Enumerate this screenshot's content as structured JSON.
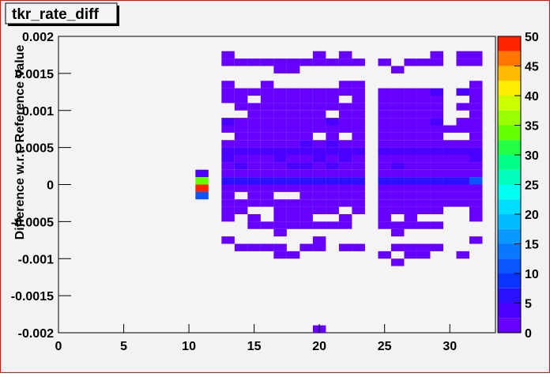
{
  "chart_data": {
    "type": "heatmap",
    "title": "tkr_rate_diff",
    "y_label": "Difference w.r.t. Reference Value",
    "xlim": [
      0,
      33.5
    ],
    "xticks": [
      0,
      5,
      10,
      15,
      20,
      25,
      30
    ],
    "ylim": [
      -0.002,
      0.002
    ],
    "yticks": [
      -0.002,
      -0.0015,
      -0.001,
      -0.0005,
      0,
      0.0005,
      0.001,
      0.0015,
      0.002
    ],
    "zlim": [
      0,
      50
    ],
    "zticks": [
      0,
      5,
      10,
      15,
      20,
      25,
      30,
      35,
      40,
      45,
      50
    ],
    "palette": [
      "#6600ff",
      "#4a00ff",
      "#2a10ff",
      "#0a33ff",
      "#0a55ff",
      "#0a77ff",
      "#0a99ff",
      "#00bbff",
      "#00ddff",
      "#00ffee",
      "#00ffbb",
      "#00ff88",
      "#22ff44",
      "#66ff00",
      "#99ff00",
      "#ccff00",
      "#ffee00",
      "#ffbb00",
      "#ff7700",
      "#ff2200"
    ],
    "xbins": [
      -0.5,
      0.5,
      1.5,
      2.5,
      3.5,
      4.5,
      5.5,
      6.5,
      7.5,
      8.5,
      9.5,
      10.5,
      11.5,
      12.5,
      13.5,
      14.5,
      15.5,
      16.5,
      17.5,
      18.5,
      19.5,
      20.5,
      21.5,
      22.5,
      23.5,
      24.5,
      25.5,
      26.5,
      27.5,
      28.5,
      29.5,
      30.5,
      31.5,
      32.5,
      33.5
    ],
    "ybins": [
      -0.002,
      -0.0019,
      -0.0018,
      -0.0017,
      -0.0016,
      -0.0015,
      -0.0014,
      -0.0013,
      -0.0012,
      -0.0011,
      -0.001,
      -0.0009,
      -0.0008,
      -0.0007,
      -0.0006,
      -0.0005,
      -0.0004,
      -0.0003,
      -0.0002,
      -0.0001,
      0,
      0.0001,
      0.0002,
      0.0003,
      0.0004,
      0.0005,
      0.0006,
      0.0007,
      0.0008,
      0.0009,
      0.001,
      0.0011,
      0.0012,
      0.0013,
      0.0014,
      0.0015,
      0.0016,
      0.0017,
      0.0018,
      0.0019,
      0.002
    ],
    "rows": [
      {
        "y": 0.00175,
        "x": [
          13,
          20,
          22,
          29,
          31,
          32
        ],
        "z": [
          1,
          1,
          1,
          1,
          1,
          1
        ]
      },
      {
        "y": 0.00165,
        "x": [
          13,
          14,
          15,
          16,
          17,
          18,
          19,
          20,
          21,
          22,
          23,
          25,
          27,
          28,
          29,
          31,
          32
        ],
        "z": [
          1,
          1,
          1,
          1,
          1,
          1,
          1,
          1,
          1,
          1,
          1,
          1,
          1,
          1,
          1,
          1,
          1
        ]
      },
      {
        "y": 0.00155,
        "x": [
          17,
          18,
          26
        ],
        "z": [
          1,
          1,
          1
        ]
      },
      {
        "y": 0.00135,
        "x": [
          13,
          16,
          22,
          23,
          32
        ],
        "z": [
          1,
          1,
          1,
          1,
          1
        ]
      },
      {
        "y": 0.00125,
        "x": [
          13,
          14,
          15,
          16,
          17,
          18,
          19,
          20,
          21,
          22,
          23,
          25,
          26,
          27,
          28,
          29,
          31,
          32
        ],
        "z": [
          1,
          1,
          1,
          1,
          1,
          1,
          1,
          1,
          1,
          1,
          1,
          1,
          1,
          1,
          1,
          3,
          3,
          1
        ]
      },
      {
        "y": 0.00115,
        "x": [
          13,
          14,
          16,
          17,
          18,
          19,
          20,
          21,
          23,
          25,
          26,
          27,
          28,
          29,
          32
        ],
        "z": [
          1,
          1,
          1,
          1,
          1,
          1,
          1,
          1,
          1,
          1,
          1,
          1,
          1,
          1,
          1
        ]
      },
      {
        "y": 0.00105,
        "x": [
          14,
          15,
          16,
          17,
          18,
          19,
          20,
          21,
          22,
          23,
          25,
          26,
          27,
          28,
          29,
          31,
          32
        ],
        "z": [
          1,
          1,
          1,
          1,
          1,
          1,
          1,
          1,
          1,
          1,
          1,
          1,
          1,
          1,
          1,
          1,
          1
        ]
      },
      {
        "y": 0.00095,
        "x": [
          15,
          16,
          17,
          18,
          19,
          20,
          22,
          23,
          25,
          26,
          27,
          28,
          29,
          32
        ],
        "z": [
          1,
          1,
          1,
          1,
          1,
          1,
          1,
          1,
          1,
          1,
          1,
          1,
          1,
          1
        ]
      },
      {
        "y": 0.00085,
        "x": [
          13,
          14,
          15,
          16,
          17,
          18,
          19,
          20,
          21,
          22,
          23,
          25,
          26,
          27,
          28,
          29,
          31,
          32
        ],
        "z": [
          4,
          1,
          1,
          1,
          1,
          1,
          1,
          1,
          3,
          1,
          1,
          1,
          1,
          1,
          1,
          3,
          1,
          1
        ]
      },
      {
        "y": 0.00075,
        "x": [
          13,
          14,
          15,
          16,
          17,
          18,
          19,
          20,
          21,
          22,
          23,
          25,
          26,
          27,
          28,
          29,
          30,
          31,
          32
        ],
        "z": [
          1,
          1,
          1,
          1,
          1,
          1,
          1,
          1,
          1,
          1,
          1,
          1,
          1,
          1,
          1,
          1,
          1,
          1,
          1
        ]
      },
      {
        "y": 0.00065,
        "x": [
          14,
          15,
          16,
          17,
          18,
          19,
          21,
          23,
          25,
          26,
          27,
          28,
          29,
          32
        ],
        "z": [
          1,
          1,
          1,
          1,
          1,
          1,
          1,
          1,
          1,
          1,
          1,
          1,
          1,
          1
        ]
      },
      {
        "y": 0.00055,
        "x": [
          13,
          14,
          15,
          16,
          17,
          18,
          19,
          20,
          21,
          22,
          23,
          25,
          26,
          27,
          28,
          29,
          30,
          31,
          32
        ],
        "z": [
          1,
          1,
          1,
          1,
          1,
          1,
          3,
          1,
          3,
          1,
          1,
          1,
          1,
          1,
          1,
          1,
          1,
          1,
          1
        ]
      },
      {
        "y": 0.00045,
        "x": [
          13,
          14,
          15,
          16,
          17,
          18,
          19,
          20,
          21,
          22,
          23,
          25,
          26,
          27,
          28,
          29,
          30,
          31,
          32
        ],
        "z": [
          4,
          4,
          4,
          3,
          3,
          3,
          3,
          4,
          3,
          3,
          3,
          4,
          4,
          4,
          4,
          4,
          4,
          3,
          3
        ]
      },
      {
        "y": 0.00035,
        "x": [
          13,
          14,
          15,
          16,
          17,
          18,
          19,
          20,
          21,
          22,
          23,
          25,
          26,
          27,
          28,
          29,
          30,
          31,
          32
        ],
        "z": [
          3,
          1,
          1,
          1,
          3,
          1,
          1,
          3,
          1,
          3,
          1,
          1,
          1,
          1,
          1,
          1,
          1,
          1,
          3
        ]
      },
      {
        "y": 0.00025,
        "x": [
          13,
          14,
          15,
          16,
          17,
          18,
          19,
          20,
          21,
          22,
          23,
          25,
          26,
          27,
          28,
          29,
          30,
          31,
          32
        ],
        "z": [
          1,
          3,
          1,
          1,
          1,
          3,
          3,
          1,
          3,
          1,
          1,
          1,
          3,
          1,
          1,
          1,
          1,
          1,
          1
        ]
      },
      {
        "y": 0.00015,
        "x": [
          11,
          13,
          14,
          15,
          16,
          17,
          18,
          19,
          20,
          21,
          22,
          23,
          25,
          26,
          27,
          28,
          29,
          30,
          31,
          32
        ],
        "z": [
          3,
          1,
          1,
          1,
          1,
          1,
          1,
          1,
          1,
          1,
          1,
          1,
          1,
          1,
          1,
          1,
          1,
          1,
          1,
          1
        ]
      },
      {
        "y": 5e-05,
        "x": [
          11,
          13,
          14,
          15,
          16,
          17,
          18,
          19,
          20,
          21,
          22,
          23,
          25,
          26,
          27,
          28,
          29,
          30,
          31,
          32
        ],
        "z": [
          33,
          6,
          6,
          6,
          6,
          6,
          6,
          6,
          6,
          6,
          6,
          6,
          6,
          6,
          6,
          6,
          6,
          6,
          6,
          10
        ]
      },
      {
        "y": -5e-05,
        "x": [
          11,
          13,
          14,
          15,
          16,
          17,
          18,
          19,
          20,
          21,
          22,
          23,
          25,
          26,
          27,
          28,
          29,
          30,
          31,
          32
        ],
        "z": [
          48,
          1,
          1,
          1,
          1,
          1,
          1,
          1,
          1,
          1,
          1,
          1,
          1,
          1,
          1,
          1,
          1,
          1,
          1,
          1
        ]
      },
      {
        "y": -0.00015,
        "x": [
          11,
          13,
          15,
          16,
          19,
          20,
          21,
          22,
          23,
          25,
          26,
          27,
          28,
          29,
          30,
          31,
          32
        ],
        "z": [
          12,
          1,
          1,
          1,
          1,
          1,
          1,
          1,
          1,
          1,
          1,
          1,
          1,
          1,
          1,
          1,
          1
        ]
      },
      {
        "y": -0.00025,
        "x": [
          13,
          14,
          15,
          16,
          17,
          18,
          19,
          20,
          21,
          22,
          23,
          25,
          26,
          27,
          28,
          29,
          30,
          31,
          32
        ],
        "z": [
          1,
          1,
          1,
          1,
          1,
          1,
          1,
          1,
          1,
          1,
          1,
          1,
          1,
          1,
          1,
          1,
          1,
          1,
          1
        ]
      },
      {
        "y": -0.00035,
        "x": [
          13,
          14,
          17,
          18,
          19,
          20,
          21,
          23,
          25,
          26,
          27,
          28,
          29,
          32
        ],
        "z": [
          1,
          1,
          1,
          1,
          1,
          1,
          1,
          1,
          1,
          1,
          1,
          1,
          1,
          1
        ]
      },
      {
        "y": -0.00045,
        "x": [
          13,
          15,
          17,
          18,
          19,
          22,
          25,
          27,
          32
        ],
        "z": [
          1,
          1,
          1,
          1,
          1,
          1,
          1,
          1,
          1
        ]
      },
      {
        "y": -0.00055,
        "x": [
          15,
          16,
          17,
          18,
          19,
          20,
          21,
          22,
          25,
          26,
          27,
          28,
          29
        ],
        "z": [
          1,
          1,
          1,
          1,
          1,
          1,
          1,
          1,
          1,
          1,
          1,
          1,
          1
        ]
      },
      {
        "y": -0.00065,
        "x": [
          17,
          26
        ],
        "z": [
          1,
          1
        ]
      },
      {
        "y": -0.00075,
        "x": [
          13,
          20,
          32
        ],
        "z": [
          1,
          1,
          1
        ]
      },
      {
        "y": -0.00085,
        "x": [
          14,
          15,
          16,
          17,
          19,
          20,
          22,
          23,
          26,
          27,
          28,
          29
        ],
        "z": [
          1,
          1,
          1,
          1,
          1,
          1,
          1,
          1,
          1,
          1,
          1,
          1
        ]
      },
      {
        "y": -0.00095,
        "x": [
          17,
          18,
          25,
          27,
          28,
          31
        ],
        "z": [
          1,
          1,
          1,
          1,
          1,
          1
        ]
      },
      {
        "y": -0.00105,
        "x": [
          26
        ],
        "z": [
          1
        ]
      },
      {
        "y": -0.00195,
        "x": [
          20
        ],
        "z": [
          1
        ]
      }
    ]
  }
}
